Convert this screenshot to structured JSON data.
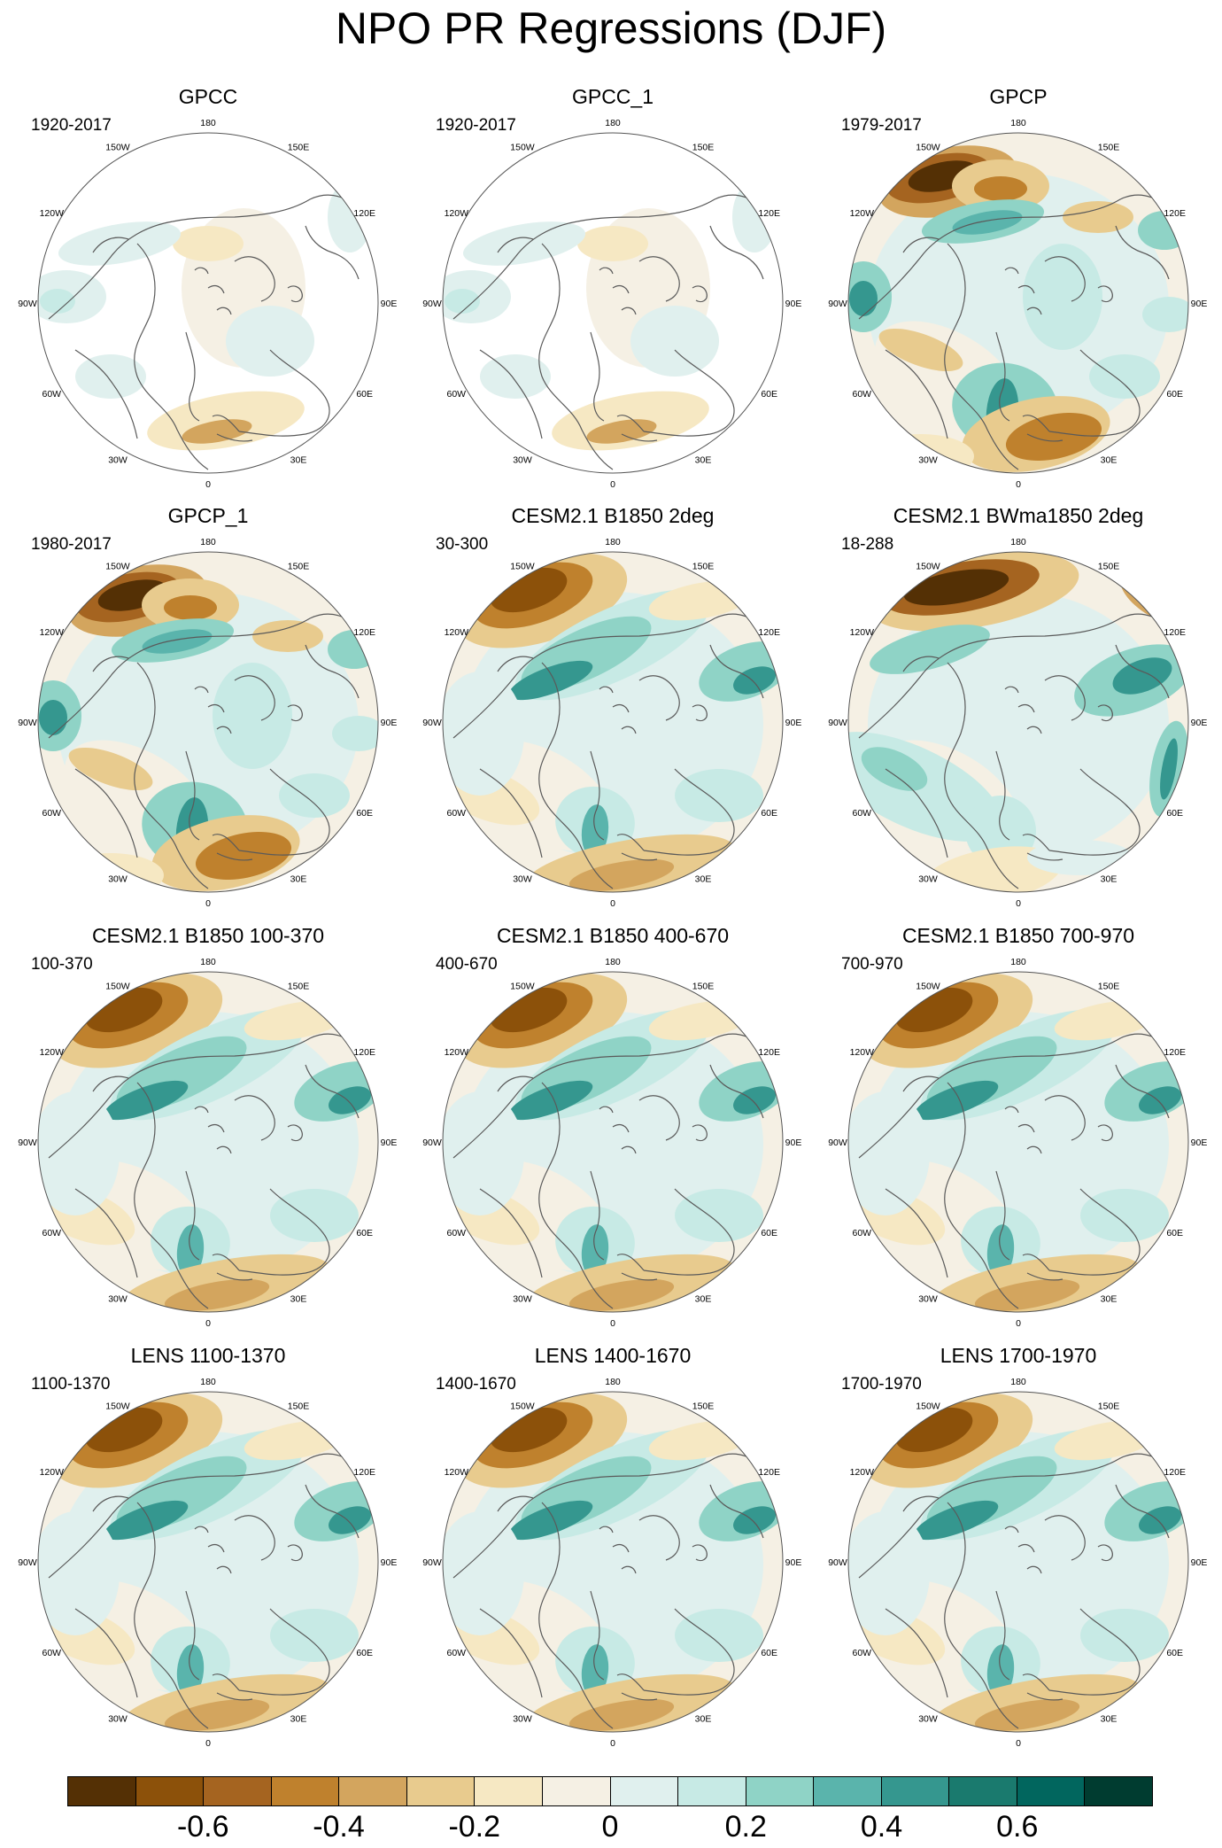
{
  "title": "NPO PR Regressions (DJF)",
  "colors": {
    "scale": [
      "#543005",
      "#8c510a",
      "#a56420",
      "#bf812d",
      "#d3a55e",
      "#e8cb8e",
      "#f6e8c3",
      "#f5f0e4",
      "#e0f0ee",
      "#c7eae5",
      "#8fd3c6",
      "#5ab4ac",
      "#35978f",
      "#1a7a6e",
      "#01665e",
      "#003c30"
    ],
    "coast": "#5a5a5a",
    "missing": "#ffffff"
  },
  "lon_labels": {
    "l180": "180",
    "l150e": "150E",
    "l120e": "120E",
    "l90e": "90E",
    "l60e": "60E",
    "l30e": "30E",
    "l0": "0",
    "l30w": "30W",
    "l60w": "60W",
    "l90w": "90W",
    "l120w": "120W",
    "l150w": "150W"
  },
  "panels": [
    {
      "title": "GPCC",
      "period": "1920-2017"
    },
    {
      "title": "GPCC_1",
      "period": "1920-2017"
    },
    {
      "title": "GPCP",
      "period": "1979-2017"
    },
    {
      "title": "GPCP_1",
      "period": "1980-2017"
    },
    {
      "title": "CESM2.1 B1850 2deg",
      "period": "30-300"
    },
    {
      "title": "CESM2.1 BWma1850 2deg",
      "period": "18-288"
    },
    {
      "title": "CESM2.1 B1850 100-370",
      "period": "100-370"
    },
    {
      "title": "CESM2.1 B1850 400-670",
      "period": "400-670"
    },
    {
      "title": "CESM2.1 B1850 700-970",
      "period": "700-970"
    },
    {
      "title": "LENS 1100-1370",
      "period": "1100-1370"
    },
    {
      "title": "LENS 1400-1670",
      "period": "1400-1670"
    },
    {
      "title": "LENS 1700-1970",
      "period": "1700-1970"
    }
  ],
  "colorbar": {
    "labels": [
      "-0.6",
      "-0.4",
      "-0.2",
      "0",
      "0.2",
      "0.4",
      "0.6"
    ],
    "label_positions_as_bin_edges": [
      1,
      3,
      5,
      8,
      10,
      12,
      14
    ],
    "bins": 17
  }
}
